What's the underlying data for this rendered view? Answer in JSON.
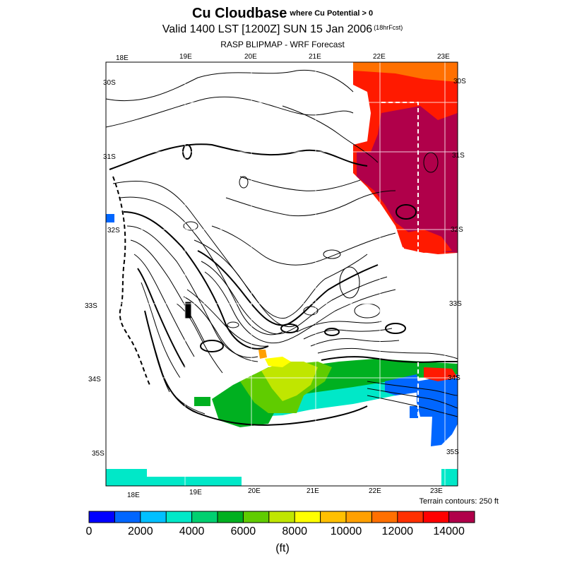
{
  "header": {
    "title": "Cu Cloudbase",
    "title_note": "where Cu Potential > 0",
    "valid": "Valid 1400 LST [1200Z] SUN 15 Jan 2006",
    "forecast": "(18hrFcst)",
    "model": "RASP BLIPMAP - WRF Forecast"
  },
  "map": {
    "lon_top": [
      "18E",
      "19E",
      "20E",
      "21E",
      "22E",
      "23E"
    ],
    "lon_bottom": [
      "18E",
      "19E",
      "20E",
      "21E",
      "22E",
      "23E"
    ],
    "lat_left": [
      "30S",
      "31S",
      "32S",
      "33S",
      "34S",
      "35S"
    ],
    "lat_right": [
      "30S",
      "31S",
      "32S",
      "33S",
      "34S",
      "35S"
    ],
    "terrain_note": "Terrain contours: 250 ft"
  },
  "colorbar": {
    "colors": [
      "#0000ff",
      "#0066ff",
      "#00c0ff",
      "#00e8c8",
      "#00d070",
      "#00b020",
      "#60cc00",
      "#c0e600",
      "#ffff00",
      "#ffc000",
      "#ffa000",
      "#ff7000",
      "#ff3000",
      "#ff0000",
      "#b0004a"
    ],
    "labels": [
      "0",
      "2000",
      "4000",
      "6000",
      "8000",
      "10000",
      "12000",
      "14000"
    ],
    "units": "(ft)"
  }
}
